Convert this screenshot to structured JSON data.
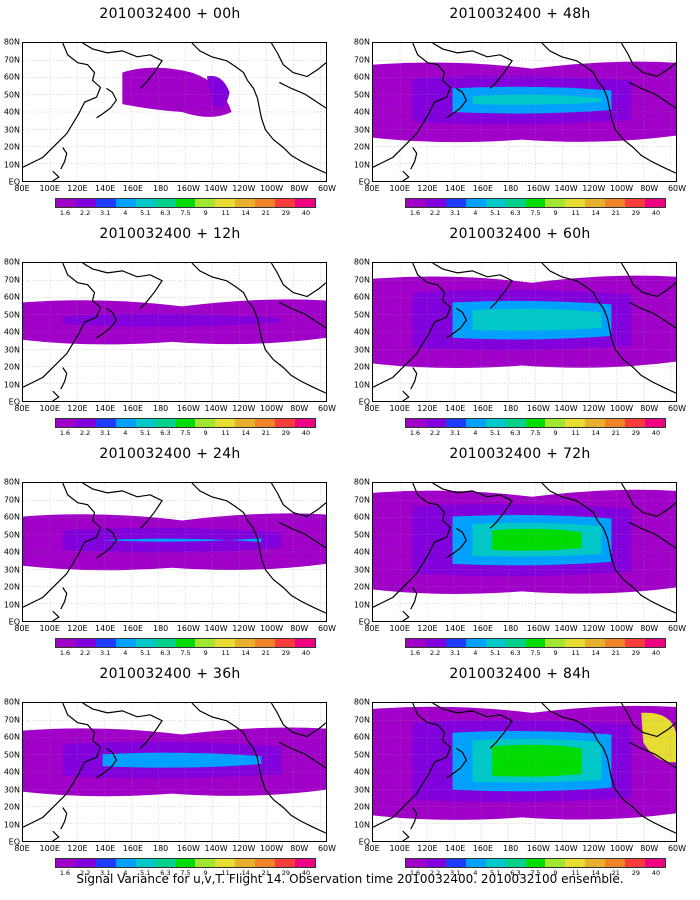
{
  "panels": [
    {
      "title": "2010032400 + 00h",
      "intensity": 0
    },
    {
      "title": "2010032400 + 12h",
      "intensity": 1
    },
    {
      "title": "2010032400 + 24h",
      "intensity": 2
    },
    {
      "title": "2010032400 + 36h",
      "intensity": 3
    },
    {
      "title": "2010032400 + 48h",
      "intensity": 4
    },
    {
      "title": "2010032400 + 60h",
      "intensity": 5
    },
    {
      "title": "2010032400 + 72h",
      "intensity": 6
    },
    {
      "title": "2010032400 + 84h",
      "intensity": 7
    }
  ],
  "lat_labels": [
    "80N",
    "70N",
    "60N",
    "50N",
    "40N",
    "30N",
    "20N",
    "10N",
    "EQ"
  ],
  "lon_labels": [
    "80E",
    "100E",
    "120E",
    "140E",
    "160E",
    "180",
    "160W",
    "140W",
    "120W",
    "100W",
    "80W",
    "60W"
  ],
  "colorbar": {
    "labels": [
      "1.6",
      "2.2",
      "3.1",
      "4",
      "5.1",
      "6.3",
      "7.5",
      "9",
      "11",
      "14",
      "21",
      "29",
      "40"
    ],
    "colors": [
      "#a000c8",
      "#8200dc",
      "#1e3cff",
      "#00a0ff",
      "#00c8c8",
      "#00d28c",
      "#00dc00",
      "#a0e632",
      "#e6dc32",
      "#e6af2d",
      "#f08228",
      "#fa3c3c",
      "#f00082"
    ]
  },
  "caption": "Signal Variance for u,v,T. Flight 14. Observation time 2010032400. 2010032100 ensemble."
}
